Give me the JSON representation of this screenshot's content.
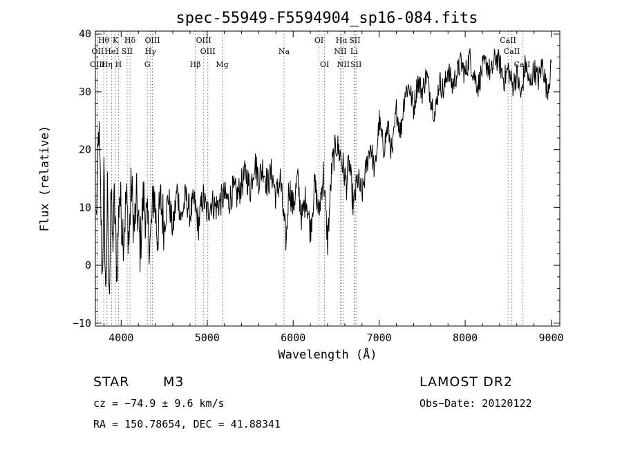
{
  "chart_data": {
    "type": "line",
    "title": "spec-55949-F5594904_sp16-084.fits",
    "xlabel": "Wavelength (Å)",
    "ylabel": "Flux (relative)",
    "xlim": [
      3700,
      9100
    ],
    "ylim": [
      -10.5,
      40.5
    ],
    "xticks": [
      4000,
      5000,
      6000,
      7000,
      8000,
      9000
    ],
    "yticks": [
      -10,
      0,
      10,
      20,
      30,
      40
    ],
    "grid": false,
    "line_color": "#000000",
    "series": [
      {
        "x": [
          3710,
          3740,
          3760,
          3780,
          3800,
          3820,
          3840,
          3860,
          3880,
          3900,
          3920,
          3950,
          3980,
          4000,
          4030,
          4060,
          4090,
          4120,
          4150,
          4180,
          4220,
          4260,
          4300,
          4340,
          4380,
          4420,
          4460,
          4500,
          4550,
          4600,
          4650,
          4700,
          4750,
          4800,
          4850,
          4900,
          4950,
          5000,
          5050,
          5100,
          5150,
          5200,
          5250,
          5300,
          5350,
          5400,
          5450,
          5500,
          5550,
          5600,
          5650,
          5700,
          5750,
          5800,
          5850,
          5890,
          5920,
          5950,
          6000,
          6050,
          6100,
          6150,
          6200,
          6250,
          6300,
          6350,
          6400,
          6450,
          6500,
          6550,
          6580,
          6620,
          6650,
          6700,
          6750,
          6800,
          6850,
          6900,
          6950,
          7000,
          7050,
          7100,
          7150,
          7200,
          7250,
          7300,
          7350,
          7400,
          7450,
          7500,
          7550,
          7600,
          7650,
          7700,
          7750,
          7800,
          7850,
          7900,
          7950,
          8000,
          8050,
          8100,
          8150,
          8200,
          8250,
          8300,
          8350,
          8400,
          8450,
          8500,
          8550,
          8600,
          8650,
          8700,
          8750,
          8800,
          8850,
          8900,
          8950,
          9000
        ],
        "y": [
          8,
          24,
          12,
          -2,
          15,
          -6,
          12,
          -7,
          14,
          3,
          11,
          -1,
          13,
          9,
          5,
          12,
          4,
          14,
          6,
          11,
          3,
          12,
          7,
          4,
          13,
          5,
          11,
          7,
          12,
          6,
          13,
          8,
          12,
          9,
          11,
          7,
          12,
          9,
          11,
          10,
          11,
          12,
          11,
          13,
          12,
          14,
          16,
          13,
          18,
          15,
          17,
          14,
          16,
          12,
          15,
          8,
          4,
          14,
          10,
          15,
          8,
          12,
          6,
          14,
          9,
          16,
          4,
          17,
          21,
          19,
          17,
          14,
          18,
          10,
          15,
          12,
          17,
          21,
          16,
          25,
          20,
          24,
          19,
          27,
          23,
          30,
          31,
          27,
          32,
          30,
          33,
          29,
          26,
          32,
          30,
          34,
          31,
          33,
          35,
          33,
          36,
          33,
          31,
          34,
          35,
          33,
          36,
          35,
          32,
          34,
          31,
          33,
          29,
          35,
          31,
          34,
          32,
          35,
          30,
          34
        ]
      }
    ],
    "lines": [
      {
        "label": "Hθ",
        "x": 3797,
        "row": 1
      },
      {
        "label": "OII",
        "x": 3727,
        "row": 2
      },
      {
        "label": "OIII",
        "x": 3725,
        "row": 3
      },
      {
        "label": "K",
        "x": 3934,
        "row": 1
      },
      {
        "label": "HeI",
        "x": 3889,
        "row": 2
      },
      {
        "label": "Hη",
        "x": 3835,
        "row": 3
      },
      {
        "label": "SII",
        "x": 4070,
        "row": 2
      },
      {
        "label": "H",
        "x": 3969,
        "row": 3
      },
      {
        "label": "Hδ",
        "x": 4102,
        "row": 1
      },
      {
        "label": "OIII",
        "x": 4363,
        "row": 1
      },
      {
        "label": "Hγ",
        "x": 4341,
        "row": 2
      },
      {
        "label": "G",
        "x": 4305,
        "row": 3
      },
      {
        "label": "Hβ",
        "x": 4861,
        "row": 3
      },
      {
        "label": "OIII",
        "x": 4959,
        "row": 1
      },
      {
        "label": "OIII",
        "x": 5007,
        "row": 2
      },
      {
        "label": "Mg",
        "x": 5175,
        "row": 3
      },
      {
        "label": "Na",
        "x": 5893,
        "row": 2
      },
      {
        "label": "OI",
        "x": 6300,
        "row": 1
      },
      {
        "label": "OI",
        "x": 6364,
        "row": 3
      },
      {
        "label": "Hα",
        "x": 6563,
        "row": 1
      },
      {
        "label": "NII",
        "x": 6548,
        "row": 2
      },
      {
        "label": "NII",
        "x": 6583,
        "row": 3
      },
      {
        "label": "SII",
        "x": 6716,
        "row": 1
      },
      {
        "label": "Li",
        "x": 6708,
        "row": 2
      },
      {
        "label": "SII",
        "x": 6731,
        "row": 3
      },
      {
        "label": "CaII",
        "x": 8498,
        "row": 1
      },
      {
        "label": "CaII",
        "x": 8542,
        "row": 2
      },
      {
        "label": "CaII",
        "x": 8662,
        "row": 3
      }
    ]
  },
  "info": {
    "object_type": "STAR",
    "subclass": "M3",
    "survey": "LAMOST DR2",
    "cz": "cz = −74.9 ± 9.6 km/s",
    "obs_date": "Obs−Date: 20120122",
    "coords": "RA = 150.78654, DEC =  41.88341"
  }
}
